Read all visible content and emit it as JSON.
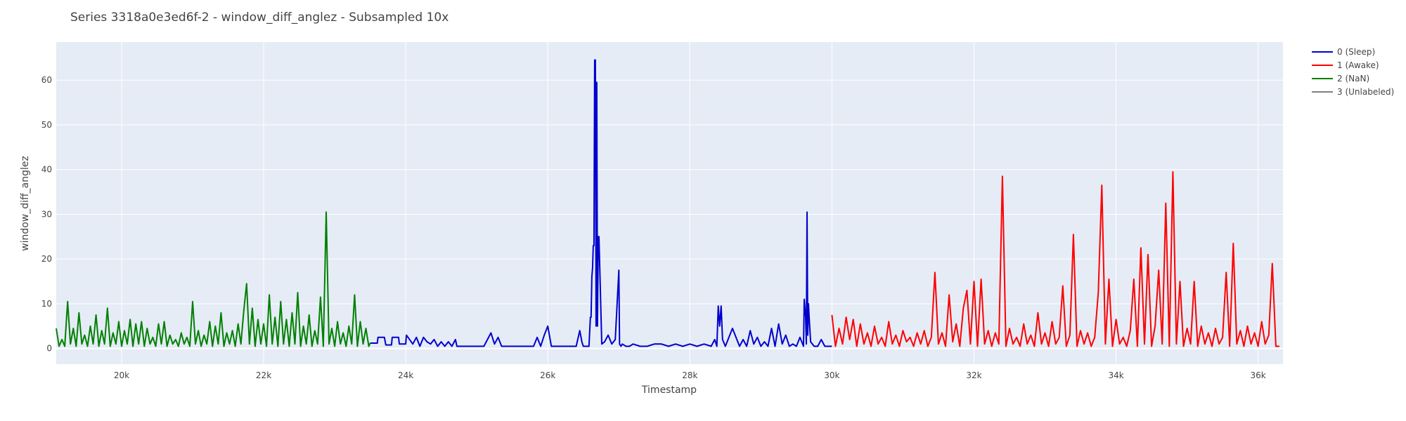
{
  "chart_data": {
    "type": "line",
    "title": "Series 3318a0e3ed6f-2 - window_diff_anglez - Subsampled 10x",
    "xlabel": "Timestamp",
    "ylabel": "window_diff_anglez",
    "xlim": [
      19080,
      36350
    ],
    "ylim": [
      -3.5,
      68.5
    ],
    "x_ticks": [
      {
        "value": 20000,
        "label": "20k"
      },
      {
        "value": 22000,
        "label": "22k"
      },
      {
        "value": 24000,
        "label": "24k"
      },
      {
        "value": 26000,
        "label": "26k"
      },
      {
        "value": 28000,
        "label": "28k"
      },
      {
        "value": 30000,
        "label": "30k"
      },
      {
        "value": 32000,
        "label": "32k"
      },
      {
        "value": 34000,
        "label": "34k"
      },
      {
        "value": 36000,
        "label": "36k"
      }
    ],
    "y_ticks": [
      {
        "value": 0,
        "label": "0"
      },
      {
        "value": 10,
        "label": "10"
      },
      {
        "value": 20,
        "label": "20"
      },
      {
        "value": 30,
        "label": "30"
      },
      {
        "value": 40,
        "label": "40"
      },
      {
        "value": 50,
        "label": "50"
      },
      {
        "value": 60,
        "label": "60"
      }
    ],
    "grid": true,
    "legend_position": "top-right",
    "colors": {
      "plot_bg": "#e5ecf6",
      "grid": "#ffffff",
      "text": "#444444"
    },
    "series": [
      {
        "name": "0 (Sleep)",
        "color": "#0000cc",
        "x": [
          23500,
          23600,
          23610,
          23700,
          23720,
          23800,
          23810,
          23900,
          23910,
          24000,
          24010,
          24100,
          24150,
          24200,
          24250,
          24300,
          24350,
          24400,
          24450,
          24500,
          24550,
          24600,
          24650,
          24700,
          24720,
          24800,
          24900,
          25000,
          25100,
          25200,
          25250,
          25300,
          25350,
          25400,
          25500,
          25600,
          25700,
          25800,
          25850,
          25900,
          25950,
          26000,
          26050,
          26100,
          26200,
          26300,
          26400,
          26450,
          26480,
          26500,
          26520,
          26540,
          26560,
          26580,
          26600,
          26610,
          26620,
          26630,
          26640,
          26650,
          26660,
          26670,
          26680,
          26690,
          26700,
          26710,
          26720,
          26760,
          26800,
          26850,
          26900,
          26950,
          27000,
          27010,
          27030,
          27050,
          27100,
          27150,
          27200,
          27300,
          27400,
          27500,
          27600,
          27700,
          27800,
          27900,
          28000,
          28100,
          28200,
          28300,
          28350,
          28380,
          28400,
          28420,
          28440,
          28460,
          28500,
          28600,
          28700,
          28750,
          28800,
          28850,
          28900,
          28950,
          29000,
          29050,
          29100,
          29150,
          29200,
          29250,
          29300,
          29350,
          29400,
          29450,
          29500,
          29550,
          29600,
          29610,
          29630,
          29640,
          29650,
          29660,
          29670,
          29680,
          29700,
          29750,
          29800,
          29850,
          29900,
          29950,
          30000
        ],
        "y": [
          1.2,
          1.2,
          2.5,
          2.5,
          0.8,
          0.8,
          2.5,
          2.5,
          1.0,
          1.0,
          3.0,
          1.0,
          2.5,
          0.5,
          2.5,
          1.5,
          1.0,
          2.0,
          0.5,
          1.5,
          0.5,
          1.5,
          0.5,
          2.0,
          0.5,
          0.5,
          0.5,
          0.5,
          0.5,
          3.5,
          1.0,
          2.5,
          0.5,
          0.5,
          0.5,
          0.5,
          0.5,
          0.5,
          2.5,
          0.5,
          3.0,
          5.0,
          0.5,
          0.5,
          0.5,
          0.5,
          0.5,
          4.0,
          1.5,
          0.5,
          0.5,
          0.5,
          0.5,
          0.5,
          7.0,
          7.0,
          16.0,
          18.0,
          23.0,
          23.0,
          64.5,
          64.5,
          5.0,
          59.5,
          5.0,
          25.0,
          25.0,
          1.0,
          1.5,
          3.0,
          1.0,
          2.0,
          17.5,
          1.0,
          0.5,
          1.0,
          0.5,
          0.5,
          1.0,
          0.5,
          0.5,
          1.0,
          1.0,
          0.5,
          1.0,
          0.5,
          1.0,
          0.5,
          1.0,
          0.5,
          2.0,
          0.5,
          9.5,
          5.0,
          9.5,
          2.0,
          0.5,
          4.5,
          0.5,
          2.0,
          0.5,
          4.0,
          1.0,
          2.5,
          0.5,
          1.5,
          0.5,
          4.5,
          0.5,
          5.5,
          1.0,
          3.0,
          0.5,
          1.0,
          0.5,
          2.5,
          0.5,
          11.0,
          7.0,
          1.0,
          30.5,
          3.0,
          10.0,
          7.0,
          1.5,
          0.5,
          0.5,
          2.0,
          0.5,
          0.5,
          0.5
        ]
      },
      {
        "name": "1 (Awake)",
        "color": "#ff0000",
        "x": [
          30000,
          30050,
          30100,
          30150,
          30200,
          30250,
          30300,
          30350,
          30400,
          30450,
          30500,
          30550,
          30600,
          30650,
          30700,
          30750,
          30800,
          30850,
          30900,
          30950,
          31000,
          31050,
          31100,
          31150,
          31200,
          31250,
          31300,
          31350,
          31400,
          31450,
          31500,
          31550,
          31600,
          31650,
          31700,
          31750,
          31800,
          31850,
          31900,
          31950,
          32000,
          32050,
          32100,
          32150,
          32200,
          32250,
          32300,
          32350,
          32400,
          32450,
          32500,
          32550,
          32600,
          32650,
          32700,
          32750,
          32800,
          32850,
          32900,
          32950,
          33000,
          33050,
          33100,
          33150,
          33200,
          33250,
          33300,
          33350,
          33400,
          33450,
          33500,
          33550,
          33600,
          33650,
          33700,
          33750,
          33800,
          33850,
          33900,
          33950,
          34000,
          34050,
          34100,
          34150,
          34200,
          34250,
          34300,
          34350,
          34400,
          34450,
          34500,
          34550,
          34600,
          34650,
          34700,
          34750,
          34800,
          34850,
          34900,
          34950,
          35000,
          35050,
          35100,
          35150,
          35200,
          35250,
          35300,
          35350,
          35400,
          35450,
          35500,
          35550,
          35600,
          35650,
          35700,
          35750,
          35800,
          35850,
          35900,
          35950,
          36000,
          36050,
          36100,
          36150,
          36200,
          36250,
          36300
        ],
        "y": [
          7.5,
          0.5,
          4.5,
          1.0,
          7.0,
          2.0,
          6.5,
          0.5,
          5.5,
          1.0,
          3.5,
          0.5,
          5.0,
          1.0,
          2.5,
          0.5,
          6.0,
          1.0,
          3.0,
          0.5,
          4.0,
          1.5,
          2.5,
          0.5,
          3.5,
          1.0,
          4.0,
          0.5,
          2.5,
          17.0,
          1.0,
          3.5,
          0.5,
          12.0,
          1.5,
          5.5,
          0.5,
          9.0,
          13.0,
          1.0,
          15.0,
          0.5,
          15.5,
          1.0,
          4.0,
          0.5,
          3.5,
          1.0,
          38.5,
          0.5,
          4.5,
          1.0,
          2.5,
          0.5,
          5.5,
          1.0,
          3.0,
          0.5,
          8.0,
          1.0,
          3.5,
          0.5,
          6.0,
          1.0,
          2.5,
          14.0,
          0.5,
          3.0,
          25.5,
          0.5,
          4.0,
          1.0,
          3.5,
          0.5,
          2.5,
          12.5,
          36.5,
          1.0,
          15.5,
          0.5,
          6.5,
          1.0,
          2.5,
          0.5,
          4.0,
          15.5,
          0.5,
          22.5,
          1.0,
          21.0,
          0.5,
          5.0,
          17.5,
          1.0,
          32.5,
          0.5,
          39.5,
          1.0,
          15.0,
          0.5,
          4.5,
          1.0,
          15.0,
          0.5,
          5.0,
          1.0,
          3.5,
          0.5,
          4.5,
          1.0,
          2.5,
          17.0,
          0.5,
          23.5,
          1.0,
          4.0,
          0.5,
          5.0,
          1.0,
          3.5,
          0.5,
          6.0,
          1.0,
          3.0,
          19.0,
          0.5,
          0.5
        ]
      },
      {
        "name": "2 (NaN)",
        "color": "#008000",
        "x": [
          19080,
          19120,
          19160,
          19200,
          19240,
          19280,
          19320,
          19360,
          19400,
          19440,
          19480,
          19520,
          19560,
          19600,
          19640,
          19680,
          19720,
          19760,
          19800,
          19840,
          19880,
          19920,
          19960,
          20000,
          20040,
          20080,
          20120,
          20160,
          20200,
          20240,
          20280,
          20320,
          20360,
          20400,
          20440,
          20480,
          20520,
          20560,
          20600,
          20640,
          20680,
          20720,
          20760,
          20800,
          20840,
          20880,
          20920,
          20960,
          21000,
          21040,
          21080,
          21120,
          21160,
          21200,
          21240,
          21280,
          21320,
          21360,
          21400,
          21440,
          21480,
          21520,
          21560,
          21600,
          21640,
          21680,
          21720,
          21760,
          21800,
          21840,
          21880,
          21920,
          21960,
          22000,
          22040,
          22080,
          22120,
          22160,
          22200,
          22240,
          22280,
          22320,
          22360,
          22400,
          22440,
          22480,
          22520,
          22560,
          22600,
          22640,
          22680,
          22720,
          22760,
          22800,
          22840,
          22880,
          22920,
          22960,
          23000,
          23040,
          23080,
          23120,
          23160,
          23200,
          23240,
          23280,
          23320,
          23360,
          23400,
          23440,
          23480,
          23500
        ],
        "y": [
          4.5,
          0.5,
          2.0,
          0.5,
          10.5,
          1.0,
          4.5,
          0.5,
          8.0,
          1.0,
          3.0,
          0.5,
          5.0,
          1.0,
          7.5,
          0.5,
          4.0,
          1.0,
          9.0,
          0.5,
          3.5,
          1.0,
          6.0,
          0.5,
          4.0,
          1.0,
          6.5,
          0.5,
          5.5,
          1.0,
          6.0,
          0.5,
          4.5,
          1.0,
          2.5,
          0.5,
          5.5,
          1.0,
          6.0,
          0.5,
          3.0,
          1.0,
          2.0,
          0.5,
          3.5,
          1.0,
          2.5,
          0.5,
          10.5,
          1.0,
          4.0,
          0.5,
          3.0,
          1.0,
          6.0,
          0.5,
          5.0,
          1.0,
          8.0,
          0.5,
          3.5,
          1.0,
          4.0,
          0.5,
          5.5,
          1.0,
          8.5,
          14.5,
          1.0,
          9.0,
          0.5,
          6.5,
          1.0,
          5.5,
          0.5,
          12.0,
          1.0,
          7.0,
          0.5,
          10.5,
          1.0,
          6.5,
          0.5,
          8.0,
          1.0,
          12.5,
          0.5,
          5.0,
          1.0,
          7.5,
          0.5,
          4.0,
          1.0,
          11.5,
          0.5,
          30.5,
          1.0,
          4.5,
          0.5,
          6.0,
          1.0,
          3.5,
          0.5,
          5.0,
          1.0,
          12.0,
          0.5,
          6.0,
          1.0,
          4.5,
          0.5,
          1.2
        ]
      },
      {
        "name": "3 (Unlabeled)",
        "color": "#808080",
        "x": [],
        "y": []
      }
    ]
  }
}
